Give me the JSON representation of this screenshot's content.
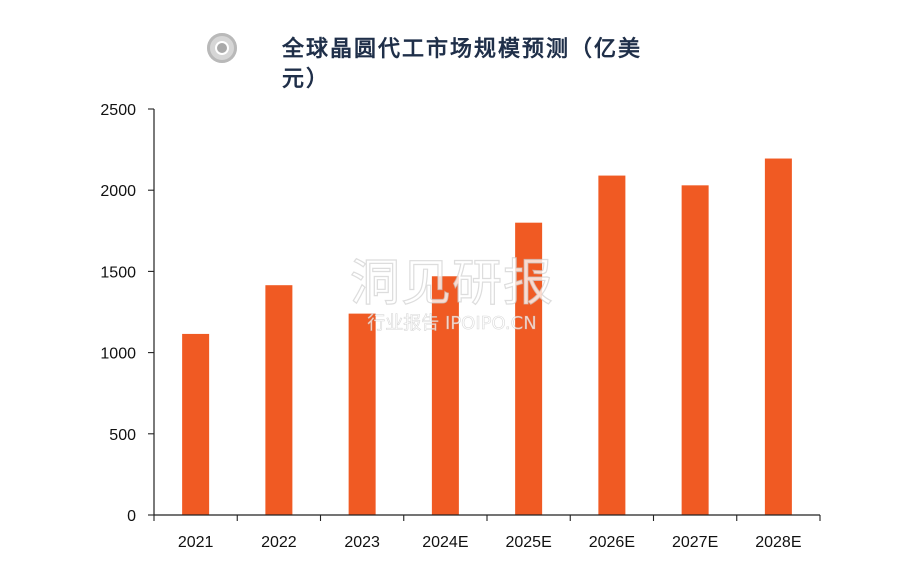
{
  "chart_data": {
    "type": "bar",
    "title": "全球晶圆代工市场规模预测（亿美元）",
    "categories": [
      "2021",
      "2022",
      "2023",
      "2024E",
      "2025E",
      "2026E",
      "2027E",
      "2028E"
    ],
    "values": [
      1115,
      1415,
      1240,
      1470,
      1800,
      2090,
      2030,
      2195
    ],
    "xlabel": "",
    "ylabel": "",
    "ylim": [
      0,
      2500
    ],
    "yticks": [
      "0",
      "500",
      "1000",
      "1500",
      "2000",
      "2500"
    ],
    "grid": false,
    "color": "#f05a23"
  },
  "watermark": {
    "brand": "洞见研报",
    "subtitle": "行业报告 IPOIPO.CN"
  },
  "icons": {
    "title_marker": "radio-circle-icon"
  }
}
